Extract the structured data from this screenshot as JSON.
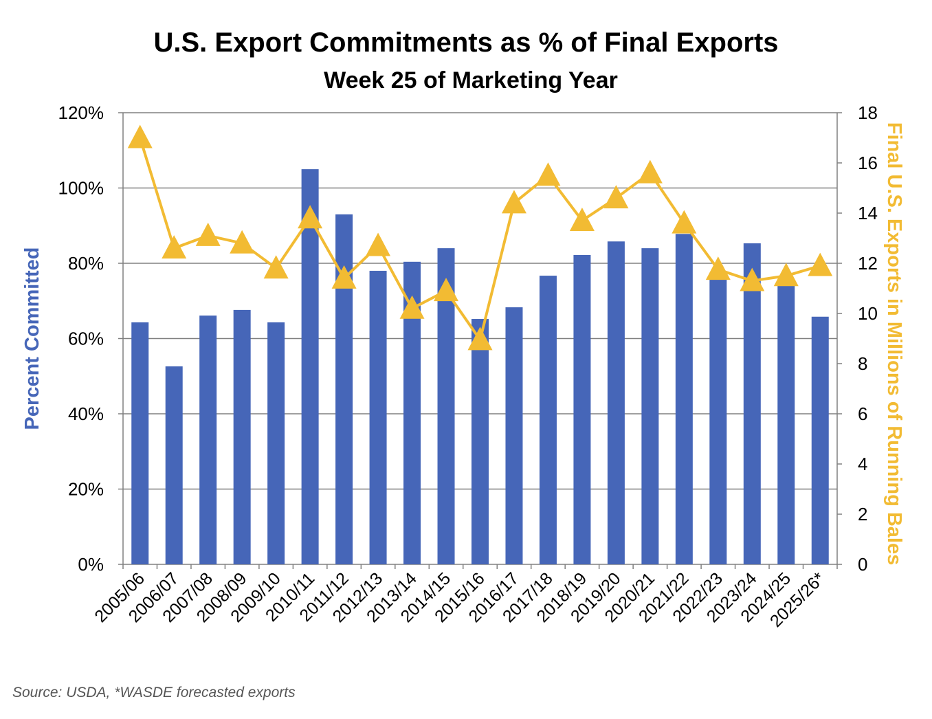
{
  "chart_data": {
    "type": "bar+line",
    "title": "U.S. Export Commitments as % of Final Exports",
    "subtitle": "Week 25 of Marketing Year",
    "source": "Source: USDA, *WASDE forecasted exports",
    "categories": [
      "2005/06",
      "2006/07",
      "2007/08",
      "2008/09",
      "2009/10",
      "2010/11",
      "2011/12",
      "2012/13",
      "2013/14",
      "2014/15",
      "2015/16",
      "2016/17",
      "2017/18",
      "2018/19",
      "2019/20",
      "2020/21",
      "2021/22",
      "2022/23",
      "2023/24",
      "2024/25",
      "2025/26*"
    ],
    "series": [
      {
        "type": "bar",
        "axis": "left",
        "color": "#4666B8",
        "values": [
          64.3,
          52.6,
          66.1,
          67.6,
          64.3,
          105.0,
          93.0,
          78.0,
          80.4,
          84.0,
          65.2,
          68.3,
          76.7,
          82.2,
          85.8,
          84.0,
          87.8,
          77.5,
          85.3,
          74.2,
          65.8
        ]
      },
      {
        "type": "line",
        "axis": "right",
        "marker": "triangle",
        "color": "#F2BB33",
        "values": [
          17.0,
          12.6,
          13.1,
          12.8,
          11.8,
          13.8,
          11.4,
          12.7,
          10.2,
          10.9,
          8.95,
          14.4,
          15.5,
          13.7,
          14.6,
          15.6,
          13.6,
          11.75,
          11.3,
          11.5,
          11.9
        ]
      }
    ],
    "y_left": {
      "label": "Percent Committed",
      "range": [
        0,
        120
      ],
      "ticks": [
        "0%",
        "20%",
        "40%",
        "60%",
        "80%",
        "100%",
        "120%"
      ],
      "color": "#4666B8"
    },
    "y_right": {
      "label": "Final U.S. Exports in Millions of Running Bales",
      "range": [
        0,
        18
      ],
      "ticks": [
        "0",
        "2",
        "4",
        "6",
        "8",
        "10",
        "12",
        "14",
        "16",
        "18"
      ],
      "color": "#F2BB33"
    },
    "grid": true,
    "legend": "none"
  }
}
